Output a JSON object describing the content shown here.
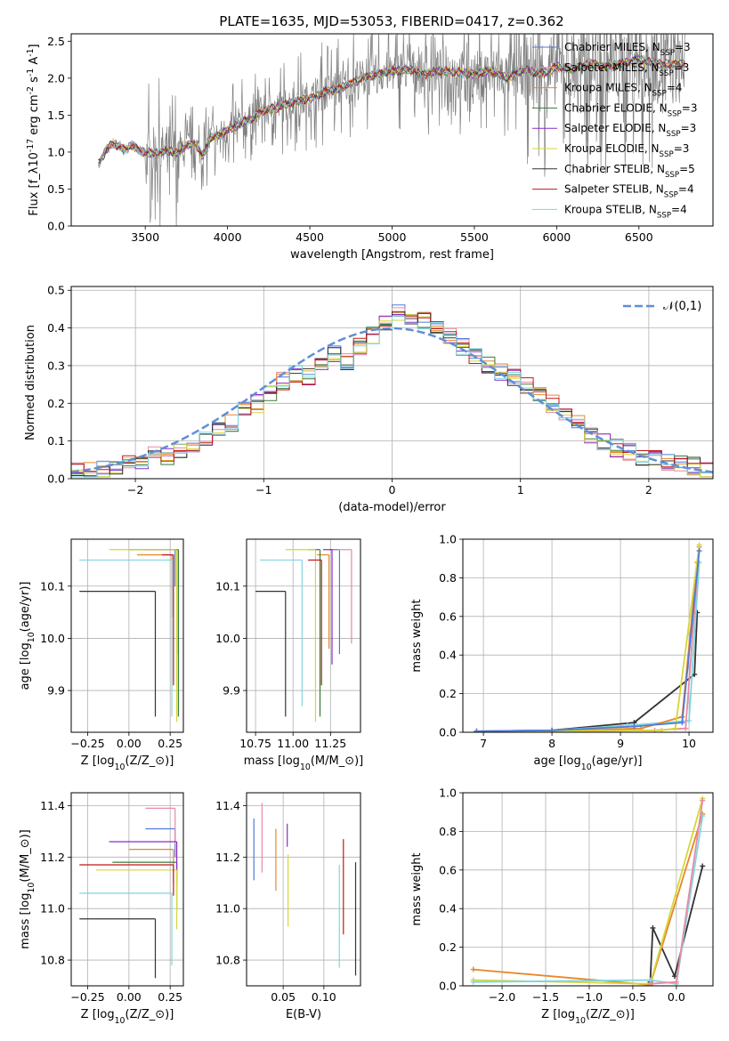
{
  "figure": {
    "title": "PLATE=1635, MJD=53053, FIBERID=0417, z=0.362"
  },
  "models": [
    {
      "name": "Chabrier MILES",
      "nssp": "3",
      "color": "#4f7ad6"
    },
    {
      "name": "Salpeter MILES",
      "nssp": "3",
      "color": "#e88aa4"
    },
    {
      "name": "Kroupa MILES",
      "nssp": "4",
      "color": "#e8862a"
    },
    {
      "name": "Chabrier ELODIE",
      "nssp": "3",
      "color": "#3a7a3a"
    },
    {
      "name": "Salpeter ELODIE",
      "nssp": "3",
      "color": "#8a2cc6"
    },
    {
      "name": "Kroupa ELODIE",
      "nssp": "3",
      "color": "#d6d63a"
    },
    {
      "name": "Chabrier STELIB",
      "nssp": "5",
      "color": "#333333"
    },
    {
      "name": "Salpeter STELIB",
      "nssp": "4",
      "color": "#c01818"
    },
    {
      "name": "Kroupa STELIB",
      "nssp": "4",
      "color": "#7fd6e0"
    }
  ],
  "chart_data": [
    {
      "id": "spectrum",
      "type": "line",
      "xlabel": "wavelength [Angstrom, rest frame]",
      "ylabel": "Flux [f$_\\lambda$10$^{-17}$ erg cm$^{-2}$ s$^{-1}$ A$^{-1}$]",
      "xlim": [
        3050,
        6950
      ],
      "ylim": [
        0,
        2.6
      ],
      "xticks": [
        3500,
        4000,
        4500,
        5000,
        5500,
        6000,
        6500
      ],
      "yticks": [
        0.0,
        0.5,
        1.0,
        1.5,
        2.0,
        2.5
      ],
      "grid": false,
      "legend": "upper right",
      "data_color": "#808080",
      "x": [
        3220,
        3260,
        3300,
        3340,
        3380,
        3420,
        3460,
        3500,
        3550,
        3600,
        3650,
        3700,
        3750,
        3800,
        3850,
        3900,
        3950,
        4000,
        4050,
        4100,
        4150,
        4200,
        4300,
        4400,
        4500,
        4600,
        4700,
        4800,
        4900,
        5000,
        5100,
        5200,
        5300,
        5400,
        5500,
        5600,
        5700,
        5800,
        5900,
        6000,
        6100,
        6200,
        6300,
        6400,
        6500,
        6600,
        6700,
        6780
      ],
      "model_flux": [
        0.85,
        1.02,
        1.12,
        1.08,
        1.03,
        1.1,
        1.02,
        1.0,
        0.98,
        1.0,
        1.02,
        0.98,
        1.1,
        1.12,
        0.95,
        1.2,
        1.22,
        1.3,
        1.35,
        1.42,
        1.45,
        1.55,
        1.6,
        1.68,
        1.72,
        1.82,
        1.88,
        1.98,
        2.05,
        2.1,
        2.12,
        2.05,
        2.1,
        2.08,
        2.05,
        2.1,
        2.0,
        2.12,
        2.05,
        2.15,
        2.12,
        2.2,
        2.15,
        2.2,
        2.25,
        2.2,
        2.18,
        2.2
      ]
    },
    {
      "id": "residuals",
      "type": "line",
      "xlabel": "(data-model)/error",
      "ylabel": "Normed distribution",
      "xlim": [
        -2.5,
        2.5
      ],
      "ylim": [
        0,
        0.51
      ],
      "xticks": [
        -2,
        -1,
        0,
        1,
        2
      ],
      "yticks": [
        0.0,
        0.1,
        0.2,
        0.3,
        0.4,
        0.5
      ],
      "grid": true,
      "legend": "upper right",
      "reference_label": "$\\mathcal{N}(0,1)$",
      "reference_color": "#5f8fd6",
      "bins_start": -2.5,
      "bin_width": 0.1,
      "hist": [
        0.02,
        0.018,
        0.022,
        0.03,
        0.04,
        0.05,
        0.06,
        0.055,
        0.075,
        0.085,
        0.11,
        0.13,
        0.15,
        0.18,
        0.2,
        0.23,
        0.26,
        0.28,
        0.27,
        0.3,
        0.33,
        0.31,
        0.35,
        0.38,
        0.42,
        0.44,
        0.43,
        0.42,
        0.4,
        0.38,
        0.35,
        0.33,
        0.3,
        0.28,
        0.27,
        0.25,
        0.22,
        0.2,
        0.17,
        0.15,
        0.12,
        0.1,
        0.08,
        0.07,
        0.06,
        0.05,
        0.045,
        0.04,
        0.035,
        0.02
      ]
    },
    {
      "id": "age_vs_Z",
      "type": "scatter",
      "xlabel": "Z [log$_{10}$($Z/Z_\\odot$)]",
      "ylabel": "age  [log$_{10}$($age/yr$)]",
      "xlim": [
        -0.35,
        0.33
      ],
      "ylim": [
        9.82,
        10.19
      ],
      "xticks": [
        -0.25,
        0.0,
        0.25
      ],
      "yticks": [
        9.9,
        10.0,
        10.1
      ],
      "grid": true,
      "points": [
        {
          "model": 0,
          "x": 0.28,
          "y": 10.17,
          "xlo": 0.24,
          "ylo": 10.1
        },
        {
          "model": 1,
          "x": 0.27,
          "y": 10.16,
          "xlo": 0.22,
          "ylo": 10.04
        },
        {
          "model": 2,
          "x": 0.26,
          "y": 10.16,
          "xlo": 0.05,
          "ylo": 10.04
        },
        {
          "model": 3,
          "x": 0.3,
          "y": 10.17,
          "xlo": 0.0,
          "ylo": 9.85
        },
        {
          "model": 4,
          "x": 0.29,
          "y": 10.17,
          "xlo": 0.1,
          "ylo": 9.97
        },
        {
          "model": 5,
          "x": 0.29,
          "y": 10.17,
          "xlo": -0.12,
          "ylo": 9.84
        },
        {
          "model": 6,
          "x": 0.16,
          "y": 10.09,
          "xlo": -0.3,
          "ylo": 9.85
        },
        {
          "model": 7,
          "x": 0.27,
          "y": 10.16,
          "xlo": 0.2,
          "ylo": 9.91
        },
        {
          "model": 8,
          "x": 0.26,
          "y": 10.15,
          "xlo": -0.3,
          "ylo": 9.85
        }
      ]
    },
    {
      "id": "age_vs_mass",
      "type": "scatter",
      "xlabel": "mass [log$_{10}$($M/M_\\odot$)]",
      "ylabel": "",
      "xlim": [
        10.69,
        11.45
      ],
      "ylim": [
        9.82,
        10.19
      ],
      "xticks": [
        10.75,
        11.0,
        11.25
      ],
      "yticks": [
        9.9,
        10.0,
        10.1
      ],
      "grid": true,
      "points": [
        {
          "model": 0,
          "x": 11.31,
          "y": 10.17,
          "xlo": 11.24,
          "ylo": 9.97
        },
        {
          "model": 1,
          "x": 11.39,
          "y": 10.17,
          "xlo": 11.3,
          "ylo": 9.99
        },
        {
          "model": 2,
          "x": 11.24,
          "y": 10.16,
          "xlo": 11.16,
          "ylo": 9.98
        },
        {
          "model": 3,
          "x": 11.18,
          "y": 10.17,
          "xlo": 11.1,
          "ylo": 9.85
        },
        {
          "model": 4,
          "x": 11.26,
          "y": 10.17,
          "xlo": 11.2,
          "ylo": 9.95
        },
        {
          "model": 5,
          "x": 11.15,
          "y": 10.17,
          "xlo": 10.95,
          "ylo": 9.84
        },
        {
          "model": 6,
          "x": 10.95,
          "y": 10.09,
          "xlo": 10.75,
          "ylo": 9.85
        },
        {
          "model": 7,
          "x": 11.19,
          "y": 10.15,
          "xlo": 11.1,
          "ylo": 9.91
        },
        {
          "model": 8,
          "x": 11.06,
          "y": 10.15,
          "xlo": 10.78,
          "ylo": 9.87
        }
      ]
    },
    {
      "id": "massweight_vs_age",
      "type": "line",
      "xlabel": "age  [log$_{10}$($age/yr$)]",
      "ylabel": "mass weight",
      "xlim": [
        6.7,
        10.35
      ],
      "ylim": [
        0,
        1.0
      ],
      "xticks": [
        7,
        8,
        9,
        10
      ],
      "yticks": [
        0.0,
        0.2,
        0.4,
        0.6,
        0.8,
        1.0
      ],
      "grid": true,
      "lines": [
        {
          "model": 6,
          "x": [
            6.9,
            8.0,
            9.2,
            10.08,
            10.12
          ],
          "y": [
            0.005,
            0.01,
            0.05,
            0.3,
            0.62
          ]
        },
        {
          "model": 8,
          "x": [
            6.9,
            8.0,
            9.1,
            10.0,
            10.15
          ],
          "y": [
            0.005,
            0.01,
            0.035,
            0.06,
            0.88
          ]
        },
        {
          "model": 2,
          "x": [
            6.9,
            8.0,
            9.3,
            9.9,
            10.12
          ],
          "y": [
            0.005,
            0.005,
            0.02,
            0.08,
            0.88
          ]
        },
        {
          "model": 1,
          "x": [
            6.9,
            8.0,
            9.5,
            9.95,
            10.15
          ],
          "y": [
            0.005,
            0.005,
            0.01,
            0.02,
            0.96
          ]
        },
        {
          "model": 5,
          "x": [
            6.9,
            8.0,
            9.6,
            9.8,
            10.15
          ],
          "y": [
            0.005,
            0.005,
            0.01,
            0.02,
            0.97
          ]
        },
        {
          "model": 0,
          "x": [
            6.9,
            8.0,
            9.2,
            9.9,
            10.15
          ],
          "y": [
            0.005,
            0.01,
            0.03,
            0.05,
            0.94
          ]
        }
      ]
    },
    {
      "id": "mass_vs_Z",
      "type": "scatter",
      "xlabel": "Z [log$_{10}$($Z/Z_\\odot$)]",
      "ylabel": "mass [log$_{10}$($M/M_\\odot$)]",
      "xlim": [
        -0.35,
        0.33
      ],
      "ylim": [
        10.7,
        11.45
      ],
      "xticks": [
        -0.25,
        0.0,
        0.25
      ],
      "yticks": [
        10.8,
        11.0,
        11.2,
        11.4
      ],
      "grid": true,
      "points": [
        {
          "model": 0,
          "x": 0.28,
          "y": 11.31,
          "xlo": 0.1,
          "ylo": 11.2
        },
        {
          "model": 1,
          "x": 0.28,
          "y": 11.39,
          "xlo": 0.1,
          "ylo": 11.25
        },
        {
          "model": 2,
          "x": 0.27,
          "y": 11.23,
          "xlo": 0.0,
          "ylo": 11.1
        },
        {
          "model": 3,
          "x": 0.29,
          "y": 11.18,
          "xlo": -0.1,
          "ylo": 11.0
        },
        {
          "model": 4,
          "x": 0.29,
          "y": 11.26,
          "xlo": -0.12,
          "ylo": 11.1
        },
        {
          "model": 5,
          "x": 0.29,
          "y": 11.15,
          "xlo": -0.2,
          "ylo": 10.92
        },
        {
          "model": 6,
          "x": 0.16,
          "y": 10.96,
          "xlo": -0.3,
          "ylo": 10.73
        },
        {
          "model": 7,
          "x": 0.27,
          "y": 11.17,
          "xlo": -0.3,
          "ylo": 11.05
        },
        {
          "model": 8,
          "x": 0.26,
          "y": 11.06,
          "xlo": -0.3,
          "ylo": 10.78
        }
      ]
    },
    {
      "id": "mass_vs_ebv",
      "type": "scatter",
      "xlabel": "E(B-V)",
      "ylabel": "",
      "xlim": [
        0.005,
        0.145
      ],
      "ylim": [
        10.7,
        11.45
      ],
      "xticks": [
        0.05,
        0.1
      ],
      "yticks": [
        10.8,
        11.0,
        11.2,
        11.4
      ],
      "grid": true,
      "points": [
        {
          "model": 0,
          "x": 0.014,
          "y11": 11.35,
          "ylo": 11.11
        },
        {
          "model": 1,
          "x": 0.024,
          "y11": 11.41,
          "ylo": 11.14
        },
        {
          "model": 2,
          "x": 0.041,
          "y11": 11.31,
          "ylo": 11.07
        },
        {
          "model": 4,
          "x": 0.055,
          "y11": 11.33,
          "ylo": 11.24
        },
        {
          "model": 5,
          "x": 0.056,
          "y11": 11.21,
          "ylo": 10.93
        },
        {
          "model": 8,
          "x": 0.119,
          "y11": 11.17,
          "ylo": 10.77
        },
        {
          "model": 7,
          "x": 0.124,
          "y11": 11.27,
          "ylo": 10.9
        },
        {
          "model": 6,
          "x": 0.139,
          "y11": 11.18,
          "ylo": 10.74
        }
      ]
    },
    {
      "id": "massweight_vs_Z",
      "type": "line",
      "xlabel": "Z [log$_{10}$($Z/Z_\\odot$)]",
      "ylabel": "mass weight",
      "xlim": [
        -2.45,
        0.42
      ],
      "ylim": [
        0,
        1.0
      ],
      "xticks": [
        -2.0,
        -1.5,
        -1.0,
        -0.5,
        0.0
      ],
      "yticks": [
        0.0,
        0.2,
        0.4,
        0.6,
        0.8,
        1.0
      ],
      "grid": true,
      "lines": [
        {
          "model": 6,
          "x": [
            -0.3,
            -0.27,
            -0.02,
            0.3
          ],
          "y": [
            0.02,
            0.3,
            0.05,
            0.62
          ]
        },
        {
          "model": 2,
          "x": [
            -2.33,
            -0.3,
            0.3
          ],
          "y": [
            0.085,
            0.005,
            0.89
          ]
        },
        {
          "model": 5,
          "x": [
            -2.33,
            -0.3,
            0.3
          ],
          "y": [
            0.03,
            0.01,
            0.97
          ]
        },
        {
          "model": 8,
          "x": [
            -2.33,
            -0.3,
            0.0,
            0.3
          ],
          "y": [
            0.02,
            0.03,
            0.01,
            0.88
          ]
        },
        {
          "model": 1,
          "x": [
            -0.3,
            0.0,
            0.3
          ],
          "y": [
            0.01,
            0.02,
            0.96
          ]
        }
      ]
    }
  ]
}
